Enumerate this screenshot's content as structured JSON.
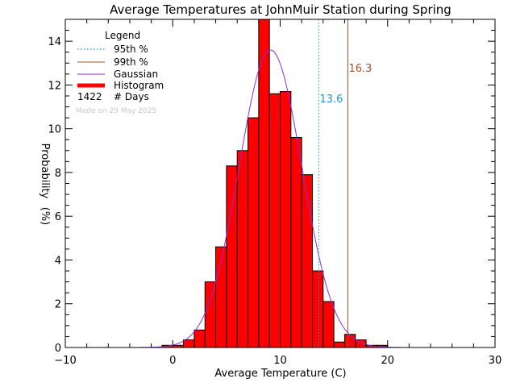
{
  "chart_data": {
    "type": "bar",
    "title": "Average Temperatures at JohnMuir Station during Spring",
    "xlabel": "Average Temperature (C)",
    "ylabel": "Probability",
    "ylabel_unit": "(%)",
    "xlim": [
      -10,
      30
    ],
    "ylim": [
      0,
      15
    ],
    "x_ticks": [
      -10,
      0,
      10,
      20,
      30
    ],
    "y_ticks": [
      0,
      2,
      4,
      6,
      8,
      10,
      12,
      14
    ],
    "bin_width": 1,
    "bins": [
      {
        "x0": -1,
        "value": 0.1
      },
      {
        "x0": 0,
        "value": 0.1
      },
      {
        "x0": 1,
        "value": 0.35
      },
      {
        "x0": 2,
        "value": 0.8
      },
      {
        "x0": 3,
        "value": 3.0
      },
      {
        "x0": 4,
        "value": 4.6
      },
      {
        "x0": 5,
        "value": 8.3
      },
      {
        "x0": 6,
        "value": 9.0
      },
      {
        "x0": 7,
        "value": 10.5
      },
      {
        "x0": 8,
        "value": 15.0
      },
      {
        "x0": 9,
        "value": 11.6
      },
      {
        "x0": 10,
        "value": 11.7
      },
      {
        "x0": 11,
        "value": 9.6
      },
      {
        "x0": 12,
        "value": 7.9
      },
      {
        "x0": 13,
        "value": 3.5
      },
      {
        "x0": 14,
        "value": 2.1
      },
      {
        "x0": 15,
        "value": 0.25
      },
      {
        "x0": 16,
        "value": 0.6
      },
      {
        "x0": 17,
        "value": 0.35
      },
      {
        "x0": 18,
        "value": 0.1
      },
      {
        "x0": 19,
        "value": 0.1
      }
    ],
    "gaussian": {
      "mean": 9.1,
      "sd": 2.93,
      "peak": 13.6
    },
    "percentiles": [
      {
        "label": "95th %",
        "value": 13.6,
        "text": "13.6",
        "color": "#1e90e0",
        "style": "dotted"
      },
      {
        "label": "99th %",
        "value": 16.3,
        "text": "16.3",
        "color": "#a0522d",
        "style": "solid"
      }
    ],
    "legend": {
      "title": "Legend",
      "placement": "top-left",
      "items": [
        "95th %",
        "99th %",
        "Gaussian",
        "Histogram"
      ],
      "days_count": "1422",
      "days_label": "# Days"
    },
    "note": "Made on 29 May 2025",
    "colors": {
      "histogram": "#ff0000",
      "gaussian": "#8a2be2",
      "p95": "#1e90e0",
      "p99": "#a0522d"
    }
  }
}
